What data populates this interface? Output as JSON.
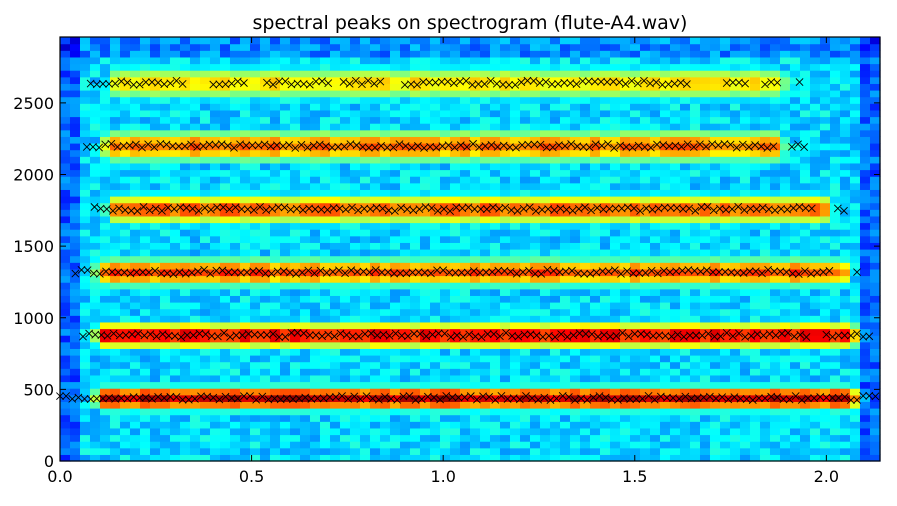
{
  "chart_data": {
    "type": "heatmap",
    "title": "spectral peaks on spectrogram (flute-A4.wav)",
    "xlabel": "",
    "ylabel": "",
    "xlim": [
      0.0,
      2.14
    ],
    "ylim": [
      0,
      2960
    ],
    "x_ticks": [
      0.0,
      0.5,
      1.0,
      1.5,
      2.0
    ],
    "x_tick_labels": [
      "0.0",
      "0.5",
      "1.0",
      "1.5",
      "2.0"
    ],
    "y_ticks": [
      0,
      500,
      1000,
      1500,
      2000,
      2500
    ],
    "y_tick_labels": [
      "0",
      "500",
      "1000",
      "1500",
      "2000",
      "2500"
    ],
    "colormap": "jet",
    "marker": "x",
    "marker_color": "#000000",
    "harmonic_bands": [
      {
        "freq": 440,
        "t_start": 0.06,
        "t_end": 2.12,
        "peak_level": 0.97
      },
      {
        "freq": 880,
        "t_start": 0.06,
        "t_end": 2.12,
        "peak_level": 0.93
      },
      {
        "freq": 1320,
        "t_start": 0.06,
        "t_end": 2.1,
        "peak_level": 0.84
      },
      {
        "freq": 1760,
        "t_start": 0.09,
        "t_end": 2.05,
        "peak_level": 0.82
      },
      {
        "freq": 2200,
        "t_start": 0.08,
        "t_end": 1.93,
        "peak_level": 0.8
      },
      {
        "freq": 2640,
        "t_start": 0.09,
        "t_end": 1.94,
        "peak_level": 0.68
      }
    ],
    "peak_series": [
      {
        "freq": 440,
        "t_start": 0.0,
        "t_end": 2.13,
        "step": 0.016
      },
      {
        "freq": 880,
        "t_start": 0.06,
        "t_end": 1.96,
        "step": 0.016
      },
      {
        "freq": 880,
        "t_start": 2.0,
        "t_end": 2.12,
        "step": 0.016
      },
      {
        "freq": 1320,
        "t_start": 0.04,
        "t_end": 2.02,
        "step": 0.016
      },
      {
        "freq": 1320,
        "t_start": 2.08,
        "t_end": 2.08,
        "step": 0.016
      },
      {
        "freq": 1760,
        "t_start": 0.09,
        "t_end": 1.97,
        "step": 0.016
      },
      {
        "freq": 1760,
        "t_start": 2.03,
        "t_end": 2.05,
        "step": 0.016
      },
      {
        "freq": 2200,
        "t_start": 0.07,
        "t_end": 1.87,
        "step": 0.016
      },
      {
        "freq": 2200,
        "t_start": 1.91,
        "t_end": 1.95,
        "step": 0.016
      },
      {
        "freq": 2640,
        "t_start": 0.08,
        "t_end": 0.32,
        "step": 0.016
      },
      {
        "freq": 2640,
        "t_start": 0.4,
        "t_end": 0.48,
        "step": 0.016
      },
      {
        "freq": 2640,
        "t_start": 0.54,
        "t_end": 0.7,
        "step": 0.016
      },
      {
        "freq": 2640,
        "t_start": 0.74,
        "t_end": 0.84,
        "step": 0.016
      },
      {
        "freq": 2640,
        "t_start": 0.9,
        "t_end": 1.64,
        "step": 0.016
      },
      {
        "freq": 2640,
        "t_start": 1.74,
        "t_end": 1.79,
        "step": 0.016
      },
      {
        "freq": 2640,
        "t_start": 1.84,
        "t_end": 1.88,
        "step": 0.016
      },
      {
        "freq": 2640,
        "t_start": 1.93,
        "t_end": 1.93,
        "step": 0.016
      }
    ]
  }
}
